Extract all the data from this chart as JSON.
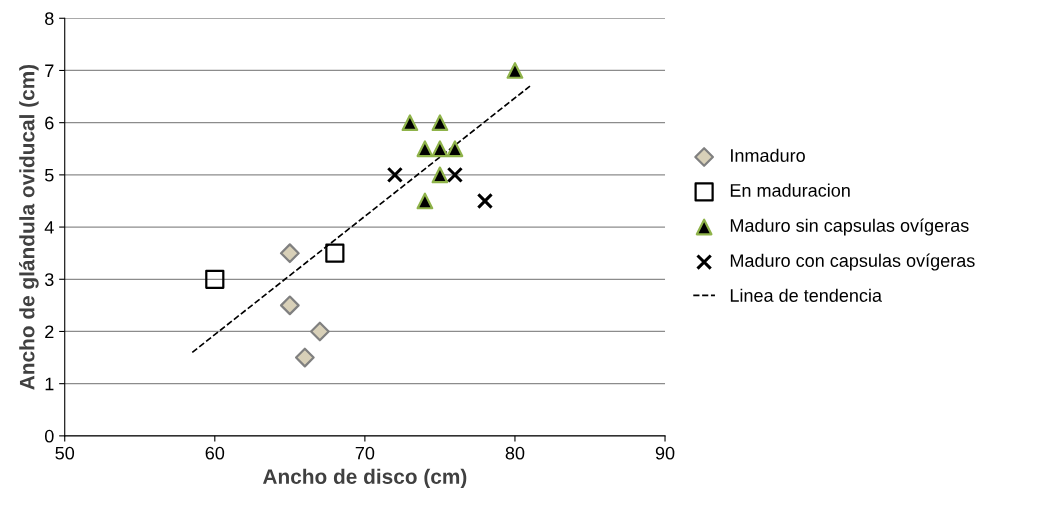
{
  "chart_data": {
    "type": "scatter",
    "xlabel": "Ancho de disco (cm)",
    "ylabel": "Ancho de glándula oviducal (cm)",
    "xlim": [
      50,
      90
    ],
    "xticks": [
      50,
      60,
      70,
      80,
      90
    ],
    "ylim": [
      0,
      8
    ],
    "yticks": [
      0,
      1,
      2,
      3,
      4,
      5,
      6,
      7,
      8
    ],
    "grid": "y",
    "legend": "right",
    "series": [
      {
        "name": "Inmaduro",
        "color": "#d8d0b8",
        "marker": "diamond",
        "x": [
          65,
          65,
          67,
          66
        ],
        "values": [
          3.5,
          2.5,
          2,
          1.5
        ]
      },
      {
        "name": "En maduracion",
        "color": "#000000",
        "marker": "square",
        "x": [
          60,
          68
        ],
        "values": [
          3,
          3.5
        ]
      },
      {
        "name": "Maduro sin capsulas ovígeras",
        "color": "#000000",
        "marker": "triangle",
        "x": [
          73,
          75,
          74,
          75,
          76,
          75,
          74,
          80
        ],
        "values": [
          6,
          6,
          5.5,
          5.5,
          5.5,
          5,
          4.5,
          7
        ]
      },
      {
        "name": "Maduro con capsulas ovígeras",
        "color": "#000000",
        "marker": "cross",
        "x": [
          72,
          76,
          78
        ],
        "values": [
          5,
          5,
          4.5
        ]
      },
      {
        "name": "Linea de tendencia",
        "type": "line",
        "line_style": "dashed",
        "color": "#000000",
        "marker": "none",
        "x": [
          58.5,
          81
        ],
        "values": [
          1.6,
          6.7
        ]
      }
    ]
  }
}
